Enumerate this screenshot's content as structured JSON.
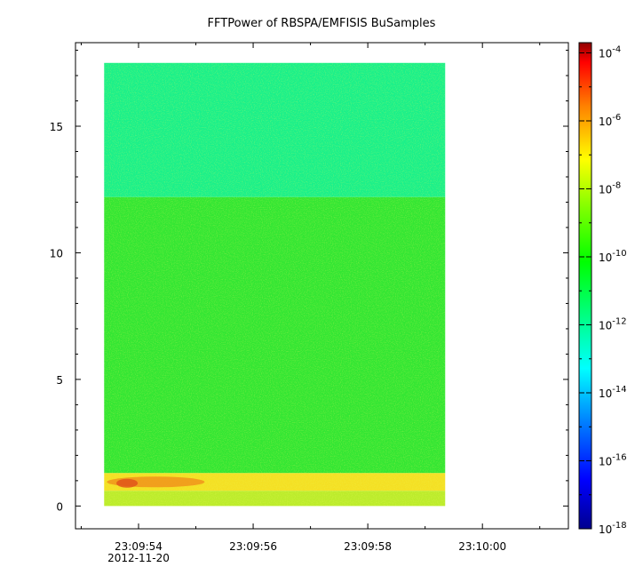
{
  "chart_data": {
    "type": "heatmap",
    "title": "FFTPower of RBSPA/EMFISIS  BuSamples",
    "xlabel": "",
    "ylabel": "",
    "x_axis": {
      "type": "time",
      "ticks": [
        "23:09:54",
        "23:09:56",
        "23:09:58",
        "23:10:00"
      ],
      "date_label": "2012-11-20",
      "range": [
        "23:09:52.9",
        "23:10:01.5"
      ],
      "data_range": [
        "23:09:53.4",
        "23:09:59.35"
      ]
    },
    "y_axis": {
      "ticks": [
        "0",
        "5",
        "10",
        "15"
      ],
      "tick_values": [
        0,
        5,
        10,
        15
      ],
      "range": [
        -0.9,
        18.3
      ],
      "data_range": [
        0,
        17.5
      ]
    },
    "colorbar": {
      "scale": "log",
      "range": [
        1e-18,
        0.0002
      ],
      "ticks": [
        {
          "base": "10",
          "exp": "-4",
          "value": 0.0001
        },
        {
          "base": "10",
          "exp": "-6",
          "value": 1e-06
        },
        {
          "base": "10",
          "exp": "-8",
          "value": 1e-08
        },
        {
          "base": "10",
          "exp": "-10",
          "value": 1e-10
        },
        {
          "base": "10",
          "exp": "-12",
          "value": 1e-12
        },
        {
          "base": "10",
          "exp": "-14",
          "value": 1e-14
        },
        {
          "base": "10",
          "exp": "-16",
          "value": 1e-16
        },
        {
          "base": "10",
          "exp": "-18",
          "value": 1e-18
        }
      ],
      "colormap": [
        "#00008f",
        "#0000ff",
        "#0080ff",
        "#00ffff",
        "#00ff80",
        "#00ff00",
        "#80ff00",
        "#ffff00",
        "#ff8000",
        "#ff0000",
        "#8f0000"
      ]
    },
    "regions": [
      {
        "y_range": [
          12.2,
          17.5
        ],
        "power": 1e-12,
        "color": "#1af08a"
      },
      {
        "y_range": [
          1.3,
          12.2
        ],
        "power": 1e-10,
        "color": "#33e633"
      },
      {
        "y_range": [
          0.6,
          1.3
        ],
        "power": 1e-08,
        "color": "#f4e024"
      },
      {
        "y_range": [
          0,
          0.6
        ],
        "power": 1e-09,
        "color": "#bcec2c"
      }
    ],
    "grid": false
  }
}
